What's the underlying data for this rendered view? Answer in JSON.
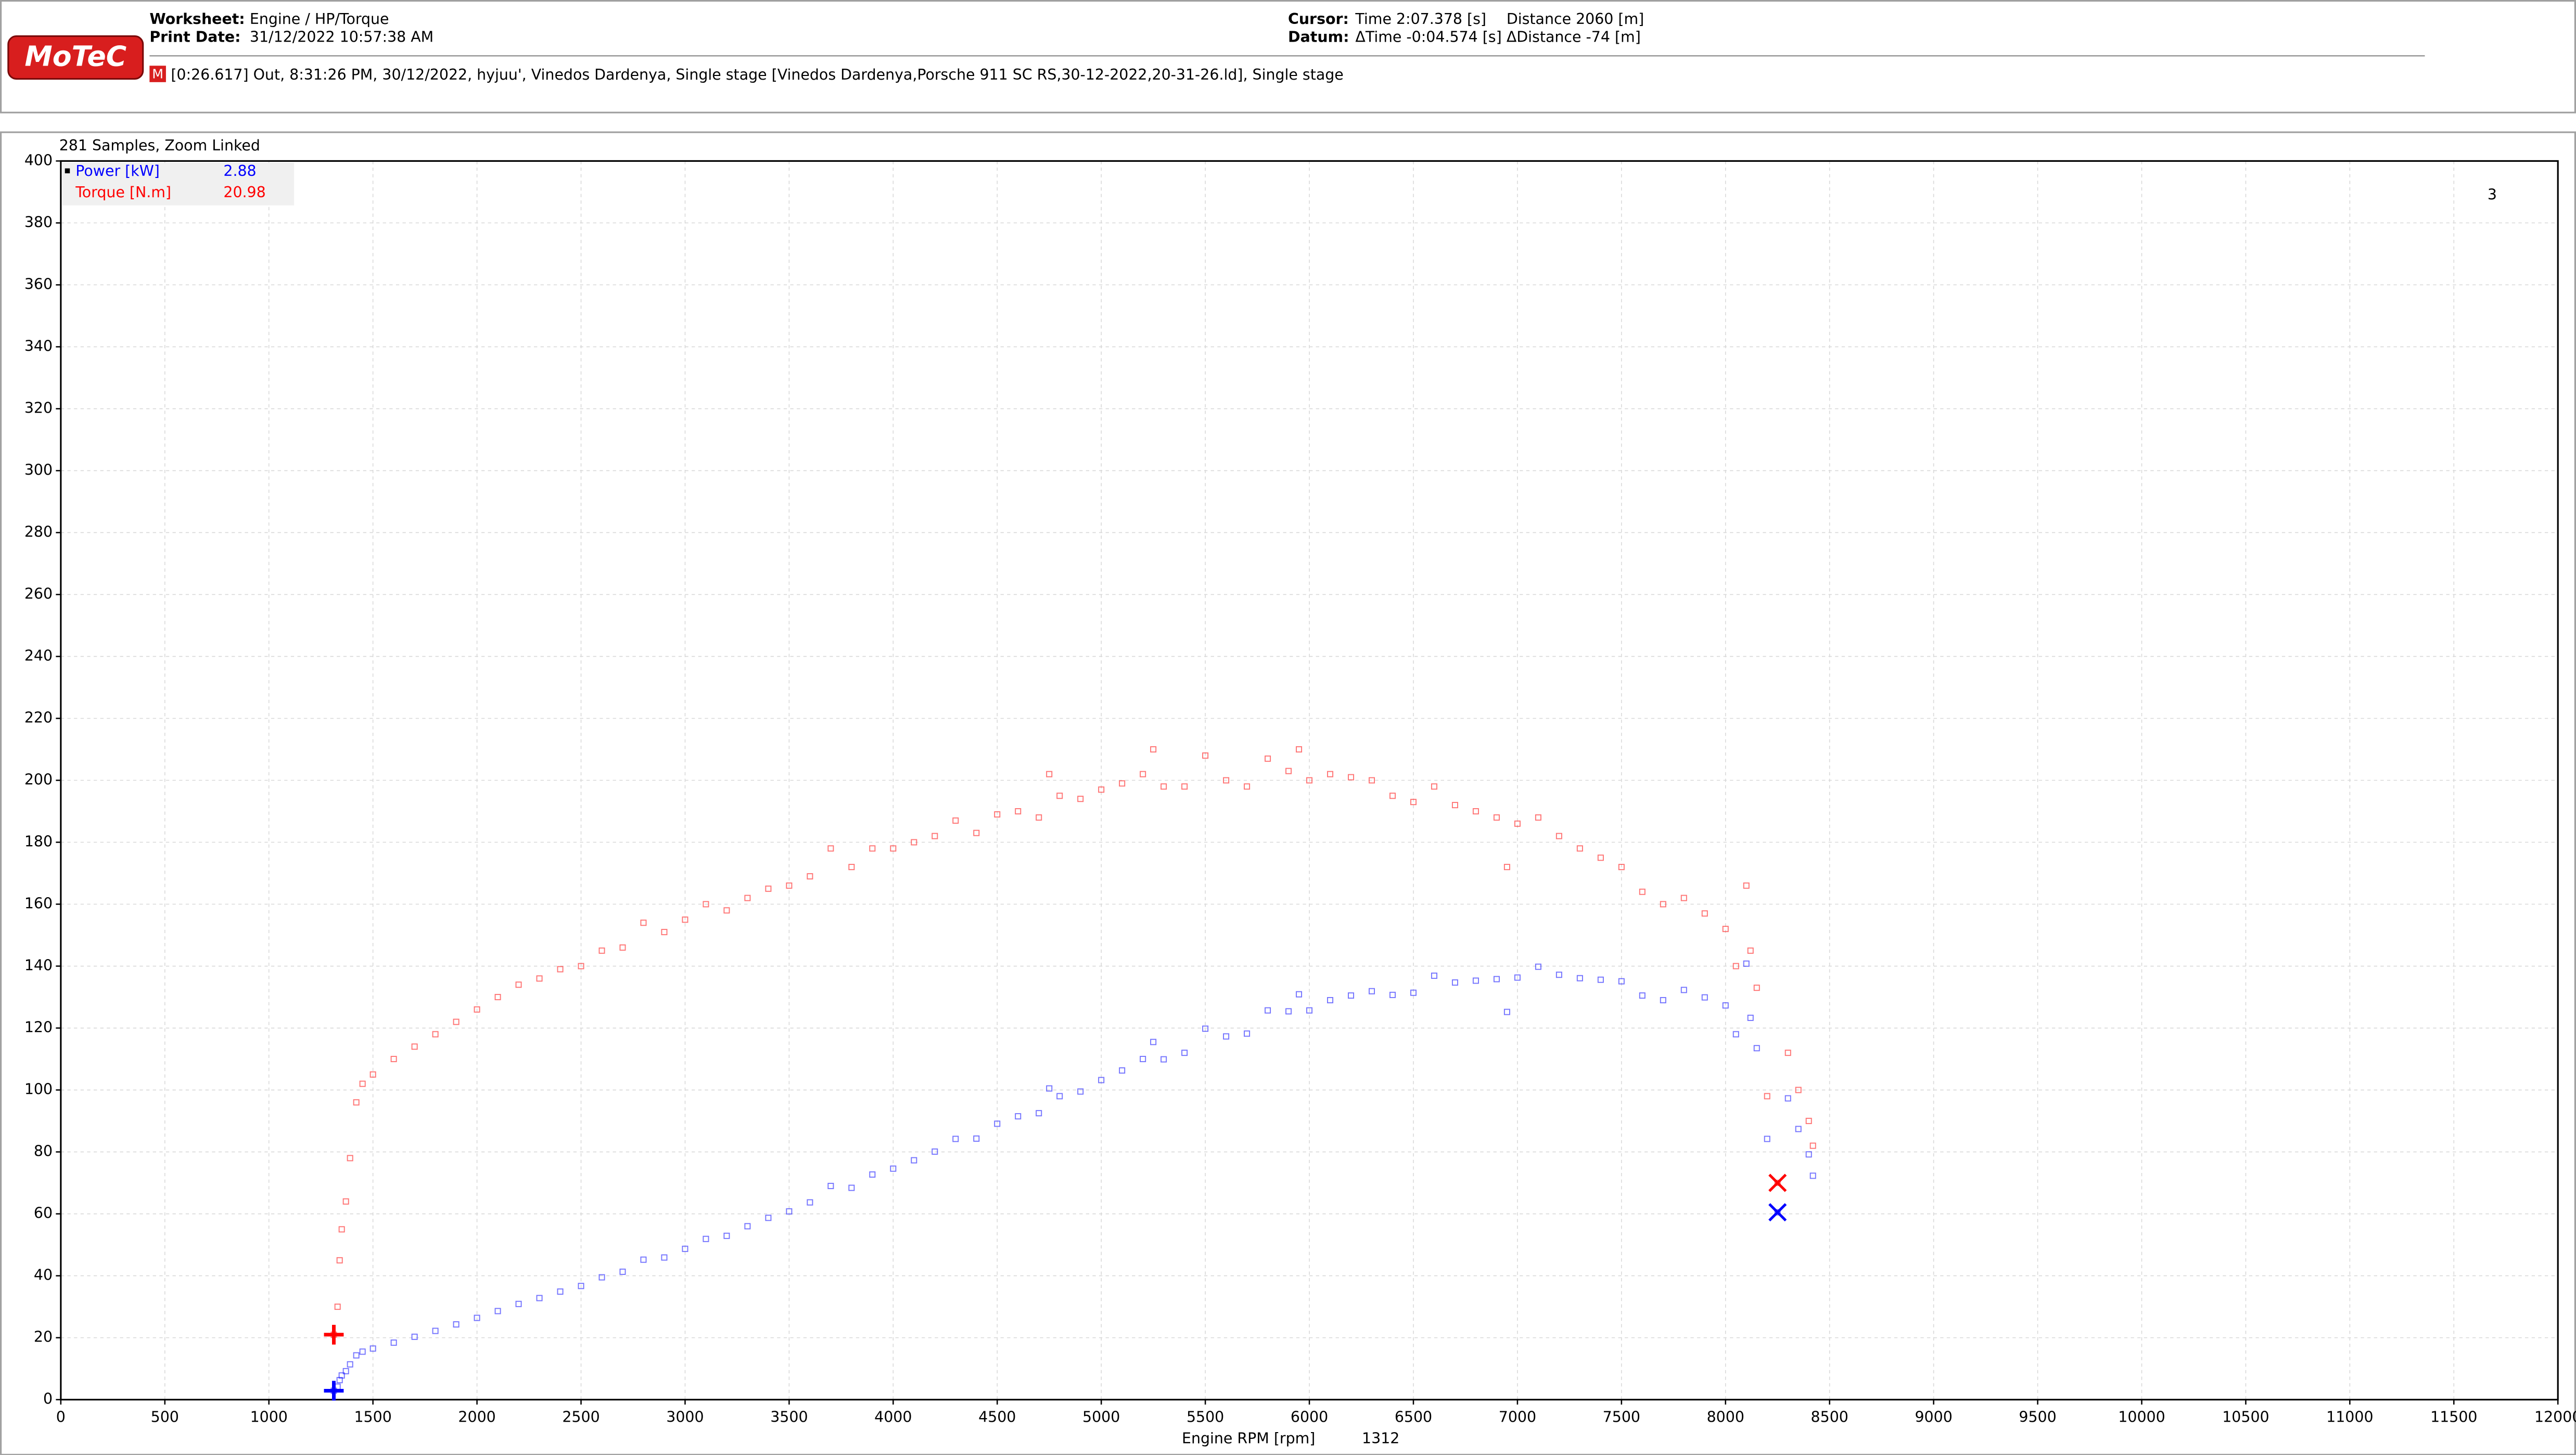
{
  "header": {
    "logo": "MoTeC",
    "worksheet_label": "Worksheet:",
    "worksheet": "Engine / HP/Torque",
    "print_date_label": "Print Date:",
    "print_date": "31/12/2022 10:57:38 AM",
    "cursor_label": "Cursor:",
    "cursor_time": "Time  2:07.378 [s]",
    "cursor_distance": "Distance  2060 [m]",
    "datum_label": "Datum:",
    "datum_time": "ΔTime  -0:04.574 [s]",
    "datum_distance": "ΔDistance  -74 [m]",
    "session_icon": "M",
    "session": "[0:26.617] Out, 8:31:26 PM, 30/12/2022, hyjuu', Vinedos Dardenya, Single stage [Vinedos Dardenya,Porsche 911 SC RS,30-12-2022,20-31-26.ld], Single stage"
  },
  "chart_data": {
    "type": "scatter",
    "title": "281 Samples, Zoom Linked",
    "badge": "3",
    "xlabel": "Engine RPM [rpm]",
    "cursor_x": 1312,
    "datum_x": 8250,
    "xlim": [
      0,
      12000
    ],
    "ylim": [
      0,
      400
    ],
    "xticks": [
      0,
      500,
      1000,
      1500,
      2000,
      2500,
      3000,
      3500,
      4000,
      4500,
      5000,
      5500,
      6000,
      6500,
      7000,
      7500,
      8000,
      8500,
      9000,
      9500,
      10000,
      10500,
      11000,
      11500,
      12000
    ],
    "yticks": [
      0,
      20,
      40,
      60,
      80,
      100,
      120,
      140,
      160,
      180,
      200,
      220,
      240,
      260,
      280,
      300,
      320,
      340,
      360,
      380,
      400
    ],
    "grid": true,
    "x": [
      1312,
      1330,
      1340,
      1350,
      1370,
      1390,
      1420,
      1450,
      1500,
      1600,
      1700,
      1800,
      1900,
      2000,
      2100,
      2200,
      2300,
      2400,
      2500,
      2600,
      2700,
      2800,
      2900,
      3000,
      3100,
      3200,
      3300,
      3400,
      3500,
      3600,
      3700,
      3800,
      3900,
      4000,
      4100,
      4200,
      4300,
      4400,
      4500,
      4600,
      4700,
      4750,
      4800,
      4900,
      5000,
      5100,
      5200,
      5250,
      5300,
      5400,
      5500,
      5600,
      5700,
      5800,
      5900,
      5950,
      6000,
      6100,
      6200,
      6300,
      6400,
      6500,
      6600,
      6700,
      6800,
      6900,
      6950,
      7000,
      7100,
      7200,
      7300,
      7400,
      7500,
      7600,
      7700,
      7800,
      7900,
      8000,
      8050,
      8100,
      8120,
      8150,
      8200,
      8250,
      8300,
      8350,
      8400,
      8420
    ],
    "series": [
      {
        "name": "Power [kW]",
        "color": "#0000ff",
        "cursor_value": 2.88,
        "datum_value": 60.5,
        "values": [
          2.88,
          4.2,
          6.3,
          7.8,
          9.2,
          11.4,
          14.3,
          15.5,
          16.5,
          18.4,
          20.3,
          22.2,
          24.3,
          26.4,
          28.6,
          30.9,
          32.8,
          34.9,
          36.7,
          39.5,
          41.3,
          45.2,
          45.9,
          48.7,
          51.9,
          52.9,
          56.0,
          58.7,
          60.8,
          63.7,
          69.0,
          68.4,
          72.7,
          74.6,
          77.3,
          80.1,
          84.2,
          84.3,
          89.1,
          91.5,
          92.5,
          100.5,
          98.0,
          99.5,
          103.2,
          106.3,
          110.0,
          115.5,
          109.9,
          112.0,
          119.8,
          117.3,
          118.2,
          125.7,
          125.4,
          130.9,
          125.7,
          129.0,
          130.5,
          131.9,
          130.7,
          131.4,
          136.9,
          134.7,
          135.3,
          135.8,
          125.2,
          136.3,
          139.8,
          137.2,
          136.1,
          135.6,
          135.1,
          130.5,
          129.0,
          132.3,
          129.9,
          127.3,
          118.0,
          140.8,
          123.3,
          113.5,
          84.2,
          60.5,
          97.3,
          87.4,
          79.2,
          72.3
        ]
      },
      {
        "name": "Torque [N.m]",
        "color": "#ff0000",
        "cursor_value": 20.98,
        "datum_value": 70,
        "values": [
          20.98,
          30,
          45,
          55,
          64,
          78,
          96,
          102,
          105,
          110,
          114,
          118,
          122,
          126,
          130,
          134,
          136,
          139,
          140,
          145,
          146,
          154,
          151,
          155,
          160,
          158,
          162,
          165,
          166,
          169,
          178,
          172,
          178,
          178,
          180,
          182,
          187,
          183,
          189,
          190,
          188,
          202,
          195,
          194,
          197,
          199,
          202,
          210,
          198,
          198,
          208,
          200,
          198,
          207,
          203,
          210,
          200,
          202,
          201,
          200,
          195,
          193,
          198,
          192,
          190,
          188,
          172,
          186,
          188,
          182,
          178,
          175,
          172,
          164,
          160,
          162,
          157,
          152,
          140,
          166,
          145,
          133,
          98,
          70,
          112,
          100,
          90,
          82
        ]
      }
    ]
  }
}
